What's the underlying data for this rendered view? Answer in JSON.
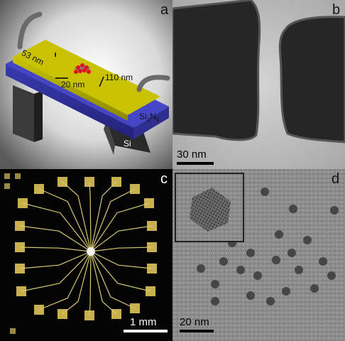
{
  "panels": {
    "a": {
      "label": "a",
      "dim_thickness": "53 nm",
      "dim_gap": "20 nm",
      "dim_width": "110 nm",
      "substrate_layer": "Si",
      "substrate_layer_sub": "3",
      "substrate_layer_mid": "N",
      "substrate_layer_sub2": "4",
      "base": "Si"
    },
    "b": {
      "label": "b",
      "scalebar": "30 nm"
    },
    "c": {
      "label": "c",
      "scalebar": "1 mm"
    },
    "d": {
      "label": "d",
      "scalebar": "20 nm"
    }
  }
}
